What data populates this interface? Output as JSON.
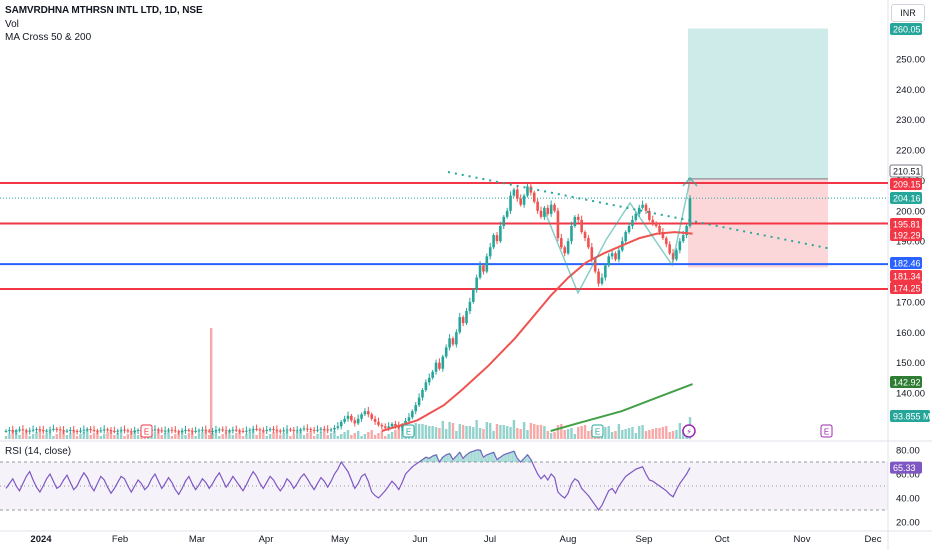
{
  "header": {
    "title": "SAMVRDHNA MTHRSN INTL LTD, 1D, NSE",
    "volume_label": "Vol",
    "ma_label": "MA Cross 50 & 200",
    "currency": "INR",
    "rsi_label": "RSI (14, close)"
  },
  "colors": {
    "up": "#26a69a",
    "down": "#ef5350",
    "ma_fast": "#ef5350",
    "ma_slow": "#43a047",
    "rsi_line": "#7e57c2",
    "resistance": "#f23645",
    "support": "#2962ff",
    "trend": "#26a69a"
  },
  "chart_data": {
    "type": "candlestick",
    "y_axis": {
      "ticks": [
        "250.00",
        "240.00",
        "230.00",
        "220.00",
        "210.00",
        "200.00",
        "190.00",
        "170.00",
        "160.00",
        "150.00",
        "140.00"
      ],
      "range": [
        125,
        263
      ]
    },
    "x_axis": {
      "labels": [
        "2024",
        "Feb",
        "Mar",
        "Apr",
        "May",
        "Jun",
        "Jul",
        "Aug",
        "Sep",
        "Oct",
        "Nov",
        "Dec"
      ]
    },
    "price_levels": [
      {
        "label": "260.05",
        "value": 260.05,
        "color": "#26a69a",
        "role": "target"
      },
      {
        "label": "210.51",
        "value": 210.51,
        "color": "#787b86",
        "role": "high"
      },
      {
        "label": "209.15",
        "value": 209.15,
        "color": "#f23645",
        "role": "resistance"
      },
      {
        "label": "204.16",
        "value": 204.16,
        "color": "#26a69a",
        "role": "last-price"
      },
      {
        "label": "195.81",
        "value": 195.81,
        "color": "#f23645",
        "role": "resistance"
      },
      {
        "label": "192.29",
        "value": 192.29,
        "color": "#f23645",
        "role": "ma-fast"
      },
      {
        "label": "182.46",
        "value": 182.46,
        "color": "#2962ff",
        "role": "support"
      },
      {
        "label": "181.34",
        "value": 181.34,
        "color": "#f23645",
        "role": "stop"
      },
      {
        "label": "174.25",
        "value": 174.25,
        "color": "#f23645",
        "role": "support"
      },
      {
        "label": "142.92",
        "value": 142.92,
        "color": "#43a047",
        "role": "ma-slow"
      },
      {
        "label": "93.855 M",
        "value": 93.855,
        "color": "#26a69a",
        "role": "volume"
      }
    ],
    "position": {
      "entry": 210.51,
      "stop": 181.34,
      "target": 260.05
    },
    "price_closes": [
      127.5,
      127.8,
      127.2,
      127.6,
      128.0,
      127.7,
      127.3,
      127.6,
      127.9,
      128.1,
      127.8,
      127.4,
      127.6,
      127.9,
      128.2,
      128.0,
      127.7,
      127.4,
      127.6,
      127.8,
      127.5,
      127.3,
      127.6,
      127.9,
      128.1,
      127.8,
      127.6,
      127.4,
      127.7,
      128.0,
      127.8,
      127.5,
      127.3,
      127.6,
      127.9,
      127.7,
      127.4,
      127.2,
      127.5,
      127.8,
      127.6,
      127.3,
      127.5,
      127.8,
      128.0,
      127.7,
      127.4,
      127.6,
      127.9,
      127.7,
      127.4,
      127.2,
      127.5,
      127.8,
      127.6,
      127.3,
      127.5,
      127.7,
      127.9,
      127.6,
      127.3,
      127.5,
      127.8,
      128.0,
      127.7,
      127.4,
      127.6,
      127.9,
      127.7,
      127.5,
      127.3,
      127.6,
      127.9,
      128.2,
      128.0,
      127.7,
      127.5,
      127.8,
      128.1,
      127.9,
      127.6,
      127.4,
      127.7,
      128.0,
      127.8,
      127.5,
      127.7,
      128.0,
      128.3,
      128.1,
      127.8,
      127.6,
      127.9,
      128.2,
      128.0,
      127.7,
      128.0,
      128.5,
      129.0,
      130.5,
      131.5,
      132.5,
      131.0,
      130.0,
      131.5,
      133.0,
      134.0,
      133.0,
      131.5,
      130.5,
      129.5,
      129.0,
      128.5,
      129.0,
      129.8,
      129.2,
      128.6,
      129.5,
      130.8,
      132.0,
      134.0,
      136.0,
      138.5,
      141.0,
      143.5,
      145.0,
      147.0,
      150.0,
      148.0,
      152.0,
      155.0,
      158.0,
      156.0,
      160.0,
      165.0,
      163.0,
      167.0,
      170.0,
      174.0,
      178.0,
      182.0,
      180.0,
      185.0,
      188.0,
      192.0,
      190.0,
      195.0,
      198.0,
      200.0,
      205.0,
      207.0,
      204.0,
      202.0,
      205.0,
      208.0,
      206.0,
      203.0,
      200.0,
      198.0,
      201.0,
      199.0,
      202.0,
      200.0,
      191.0,
      188.0,
      186.0,
      190.0,
      195.0,
      198.0,
      197.0,
      193.0,
      191.0,
      188.0,
      184.0,
      180.0,
      176.0,
      178.0,
      182.0,
      185.0,
      186.0,
      184.0,
      187.0,
      190.0,
      193.0,
      195.0,
      197.0,
      199.0,
      201.0,
      202.0,
      200.0,
      197.0,
      196.0,
      195.0,
      193.0,
      191.0,
      189.0,
      186.0,
      184.0,
      187.0,
      190.0,
      192.0,
      195.0,
      204.16
    ],
    "ma_fast": [
      [
        0.43,
        127.5
      ],
      [
        0.47,
        131.0
      ],
      [
        0.5,
        136.0
      ],
      [
        0.52,
        141.0
      ],
      [
        0.55,
        149.0
      ],
      [
        0.58,
        158.0
      ],
      [
        0.6,
        165.0
      ],
      [
        0.62,
        172.0
      ],
      [
        0.64,
        178.0
      ],
      [
        0.66,
        183.0
      ],
      [
        0.68,
        186.0
      ],
      [
        0.7,
        188.5
      ],
      [
        0.72,
        191.0
      ],
      [
        0.74,
        192.5
      ],
      [
        0.76,
        193.0
      ],
      [
        0.78,
        192.5
      ]
    ],
    "ma_slow": [
      [
        0.62,
        127.5
      ],
      [
        0.65,
        130.0
      ],
      [
        0.7,
        134.0
      ],
      [
        0.74,
        138.5
      ],
      [
        0.78,
        142.92
      ]
    ],
    "rsi": {
      "ticks": [
        "80.00",
        "60.00",
        "40.00",
        "20.00"
      ],
      "range": [
        15,
        85
      ],
      "upper": 70,
      "lower": 30,
      "last": "65.33",
      "values": [
        48,
        52,
        56,
        50,
        46,
        52,
        58,
        62,
        55,
        49,
        45,
        50,
        56,
        60,
        54,
        48,
        50,
        55,
        59,
        53,
        47,
        50,
        56,
        61,
        57,
        50,
        46,
        52,
        58,
        55,
        49,
        44,
        48,
        53,
        58,
        56,
        50,
        45,
        50,
        55,
        52,
        47,
        50,
        56,
        60,
        54,
        48,
        52,
        57,
        53,
        47,
        43,
        48,
        54,
        58,
        52,
        47,
        51,
        56,
        53,
        48,
        52,
        57,
        61,
        55,
        49,
        53,
        58,
        54,
        50,
        46,
        51,
        57,
        62,
        58,
        52,
        48,
        53,
        58,
        55,
        50,
        46,
        50,
        56,
        53,
        48,
        52,
        57,
        60,
        56,
        51,
        47,
        52,
        57,
        54,
        49,
        54,
        60,
        64,
        70,
        66,
        62,
        55,
        48,
        52,
        58,
        60,
        54,
        45,
        42,
        40,
        43,
        46,
        50,
        54,
        51,
        47,
        53,
        60,
        63,
        66,
        68,
        70,
        72,
        74,
        73,
        75,
        76,
        70,
        74,
        76,
        77,
        72,
        75,
        78,
        73,
        76,
        78,
        79,
        80,
        80,
        74,
        76,
        77,
        78,
        72,
        74,
        76,
        77,
        78,
        79,
        73,
        70,
        73,
        76,
        72,
        66,
        60,
        56,
        59,
        55,
        60,
        57,
        45,
        42,
        40,
        44,
        52,
        56,
        54,
        48,
        45,
        42,
        38,
        34,
        30,
        34,
        40,
        46,
        48,
        44,
        50,
        54,
        58,
        60,
        62,
        64,
        65,
        66,
        60,
        55,
        54,
        52,
        50,
        48,
        46,
        43,
        41,
        47,
        52,
        56,
        60,
        65.33
      ]
    },
    "event_markers": [
      "E",
      "E",
      "E",
      "E",
      "E"
    ]
  }
}
